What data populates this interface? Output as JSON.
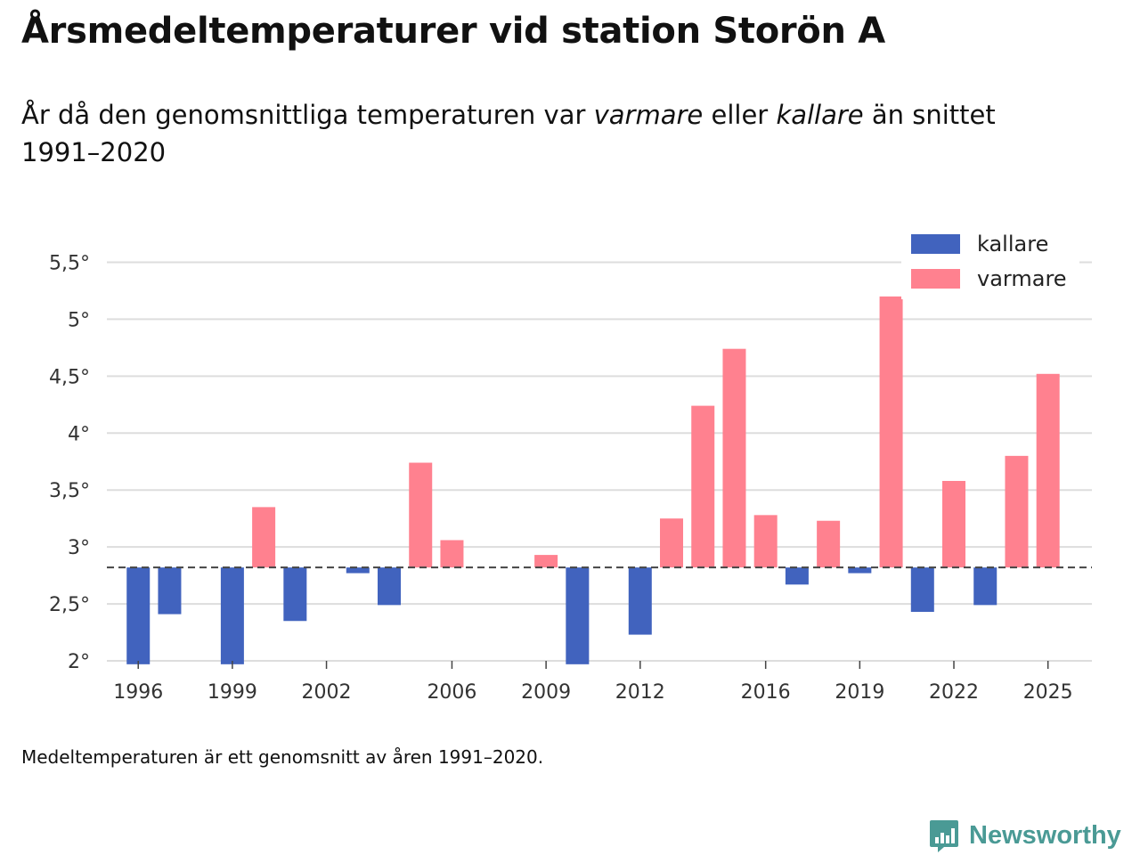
{
  "header": {
    "title": "Årsmedeltemperaturer vid station Storön A",
    "subtitle_part1": "År då den genomsnittliga temperaturen var ",
    "subtitle_em1": "varmare",
    "subtitle_part2": " eller ",
    "subtitle_em2": "kallare",
    "subtitle_part3": " än snittet 1991–2020"
  },
  "footer": {
    "note": "Medeltemperaturen är ett genomsnitt av åren 1991–2020.",
    "brand": "Newsworthy"
  },
  "colors": {
    "kallare": "#4163be",
    "varmare": "#ff818f",
    "grid": "#dddddd",
    "baseline": "#444444",
    "brand": "#4a9a95"
  },
  "chart_data": {
    "type": "bar",
    "title": "Årsmedeltemperaturer vid station Storön A",
    "xlabel": "",
    "ylabel": "",
    "baseline": 2.82,
    "ylim": [
      2,
      5.5
    ],
    "xlim": [
      1995.0,
      2026.4
    ],
    "y_ticks": [
      {
        "value": 2,
        "label": "2°"
      },
      {
        "value": 2.5,
        "label": "2,5°"
      },
      {
        "value": 3,
        "label": "3°"
      },
      {
        "value": 3.5,
        "label": "3,5°"
      },
      {
        "value": 4,
        "label": "4°"
      },
      {
        "value": 4.5,
        "label": "4,5°"
      },
      {
        "value": 5,
        "label": "5°"
      },
      {
        "value": 5.5,
        "label": "5,5°"
      }
    ],
    "x_ticks": [
      1996,
      1999,
      2002,
      2006,
      2009,
      2012,
      2016,
      2019,
      2022,
      2025
    ],
    "legend": [
      {
        "key": "kallare",
        "label": "kallare"
      },
      {
        "key": "varmare",
        "label": "varmare"
      }
    ],
    "legend_position": "top-right",
    "years": [
      1996,
      1997,
      1999,
      2000,
      2001,
      2003,
      2004,
      2005,
      2006,
      2009,
      2010,
      2012,
      2013,
      2014,
      2015,
      2016,
      2017,
      2018,
      2019,
      2020,
      2021,
      2022,
      2023,
      2024,
      2025
    ],
    "values": [
      1.97,
      2.41,
      1.97,
      3.35,
      2.35,
      2.77,
      2.49,
      3.74,
      3.06,
      2.93,
      1.97,
      2.23,
      3.25,
      4.24,
      4.74,
      3.28,
      2.67,
      3.23,
      2.77,
      5.2,
      2.43,
      3.58,
      2.49,
      3.8,
      4.52
    ]
  }
}
